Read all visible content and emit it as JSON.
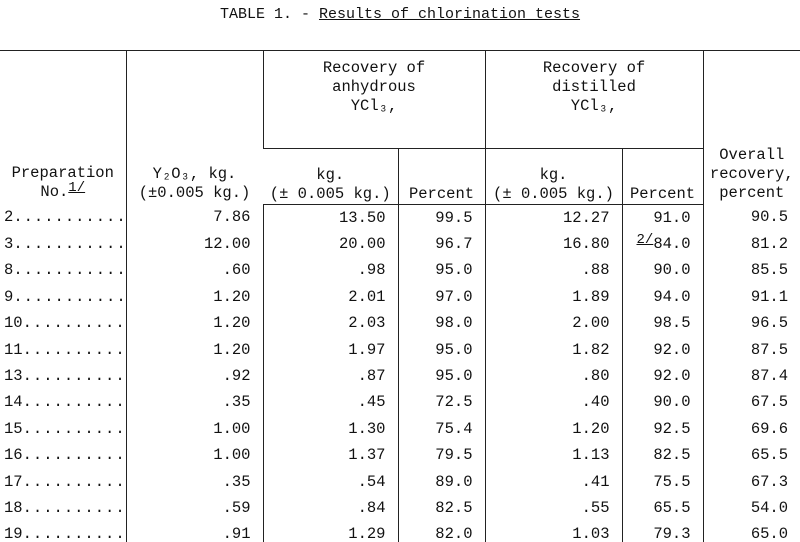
{
  "header": {
    "label": "TABLE 1. -",
    "title": "Results of chlorination tests"
  },
  "table": {
    "columns": {
      "preparation": {
        "lines": [
          "Preparation",
          "No."
        ],
        "note": "1/"
      },
      "y2o3": [
        "Y₂O₃, kg.",
        "(±0.005 kg.)"
      ],
      "anhydrous": {
        "group": [
          "Recovery of",
          "anhydrous",
          "YCl₃,"
        ],
        "kg": [
          "kg.",
          "(± 0.005 kg.)"
        ],
        "percent": "Percent"
      },
      "distilled": {
        "group": [
          "Recovery of",
          "distilled",
          "YCl₃,"
        ],
        "kg": [
          "kg.",
          "(± 0.005 kg.)"
        ],
        "percent": "Percent"
      },
      "overall": [
        "Overall",
        "recovery,",
        "percent"
      ]
    },
    "rows": [
      [
        "2",
        "7.86",
        "13.50",
        "99.5",
        "12.27",
        "91.0",
        "90.5"
      ],
      [
        "3",
        "12.00",
        "20.00",
        "96.7",
        "16.80",
        {
          "note": "2/",
          "text": "84.0"
        },
        "81.2"
      ],
      [
        "8",
        ".60",
        ".98",
        "95.0",
        ".88",
        "90.0",
        "85.5"
      ],
      [
        "9",
        "1.20",
        "2.01",
        "97.0",
        "1.89",
        "94.0",
        "91.1"
      ],
      [
        "10",
        "1.20",
        "2.03",
        "98.0",
        "2.00",
        "98.5",
        "96.5"
      ],
      [
        "11",
        "1.20",
        "1.97",
        "95.0",
        "1.82",
        "92.0",
        "87.5"
      ],
      [
        "13",
        ".92",
        ".87",
        "95.0",
        ".80",
        "92.0",
        "87.4"
      ],
      [
        "14",
        ".35",
        ".45",
        "72.5",
        ".40",
        "90.0",
        "67.5"
      ],
      [
        "15",
        "1.00",
        "1.30",
        "75.4",
        "1.20",
        "92.5",
        "69.6"
      ],
      [
        "16",
        "1.00",
        "1.37",
        "79.5",
        "1.13",
        "82.5",
        "65.5"
      ],
      [
        "17",
        ".35",
        ".54",
        "89.0",
        ".41",
        "75.5",
        "67.3"
      ],
      [
        "18",
        ".59",
        ".84",
        "82.5",
        ".55",
        "65.5",
        "54.0"
      ],
      [
        "19",
        ".91",
        "1.29",
        "82.0",
        "1.03",
        "79.3",
        "65.0"
      ]
    ]
  }
}
